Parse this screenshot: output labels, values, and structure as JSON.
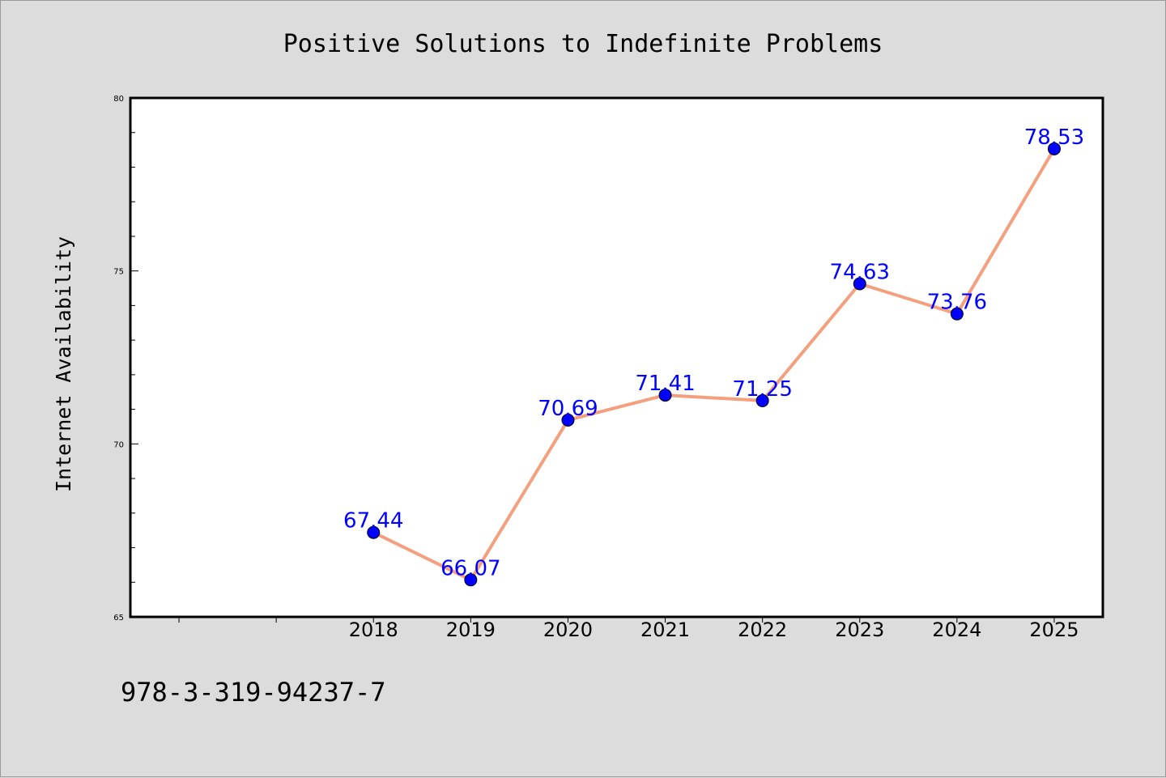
{
  "chart_data": {
    "type": "line",
    "title": "Positive Solutions to Indefinite Problems",
    "xlabel": "",
    "ylabel": "Internet Availability",
    "x": [
      2018,
      2019,
      2020,
      2021,
      2022,
      2023,
      2024,
      2025
    ],
    "x_tick_labels": [
      "2018",
      "2019",
      "2020",
      "2021",
      "2022",
      "2023",
      "2024",
      "2025"
    ],
    "series": [
      {
        "values": [
          67.44,
          66.07,
          70.69,
          71.41,
          71.25,
          74.63,
          73.76,
          78.53
        ]
      }
    ],
    "data_labels": [
      "67.44",
      "66.07",
      "70.69",
      "71.41",
      "71.25",
      "74.63",
      "73.76",
      "78.53"
    ],
    "xlim": [
      2015.5,
      2025.5
    ],
    "ylim": [
      65,
      80
    ],
    "y_tick_values": [
      65,
      70,
      75,
      80
    ],
    "y_tick_labels": [
      "65",
      "70",
      "75",
      "80"
    ],
    "y_minor_step": 1,
    "grid": false,
    "legend": "none",
    "colors": {
      "line": "#f4a07e",
      "marker": "#0000ff",
      "data_label": "#0000ff",
      "figure_background": "#dcdcdc",
      "plot_background": "#ffffff"
    }
  },
  "caption": "978-3-319-94237-7"
}
